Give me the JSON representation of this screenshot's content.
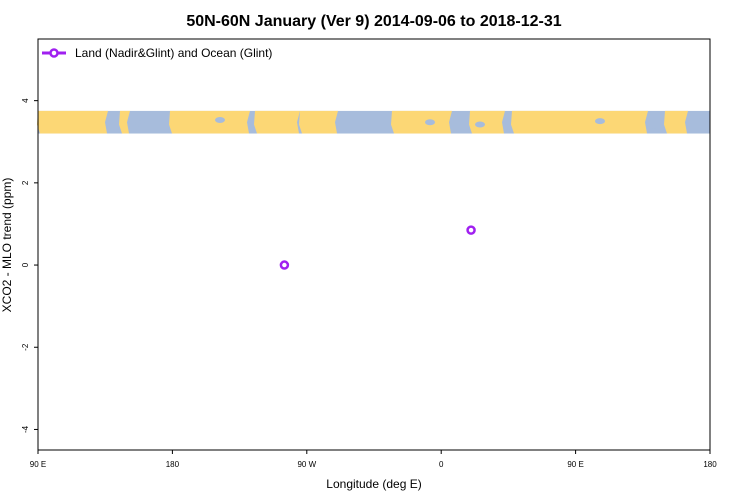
{
  "chart_data": {
    "type": "scatter",
    "title": "50N-60N January (Ver 9)   2014-09-06 to 2018-12-31",
    "xlabel": "Longitude (deg E)",
    "ylabel": "XCO2 - MLO trend (ppm)",
    "xlim": [
      90,
      450
    ],
    "ylim": [
      -4.5,
      5.5
    ],
    "x_ticks": [
      {
        "value": 90,
        "label": "90 E"
      },
      {
        "value": 162,
        "label": "180"
      },
      {
        "value": 234,
        "label": "90 W"
      },
      {
        "value": 306,
        "label": "0"
      },
      {
        "value": 378,
        "label": "90 E"
      },
      {
        "value": 450,
        "label": "180"
      }
    ],
    "y_ticks": [
      {
        "value": -4,
        "label": "-4"
      },
      {
        "value": -2,
        "label": "-2"
      },
      {
        "value": 0,
        "label": "0"
      },
      {
        "value": 2,
        "label": "2"
      },
      {
        "value": 4,
        "label": "4"
      }
    ],
    "legend_position": "top-left",
    "series": [
      {
        "name": "Land (Nadir&Glint) and Ocean (Glint)",
        "color": "#a020f0",
        "marker": "open-circle",
        "points": [
          {
            "x": 222,
            "y": 0.0
          },
          {
            "x": 322,
            "y": 0.85
          }
        ]
      }
    ],
    "map_strip": {
      "y_range": [
        3.2,
        3.75
      ],
      "ocean_color": "#a7bcdc",
      "land_color": "#fcd775"
    }
  }
}
